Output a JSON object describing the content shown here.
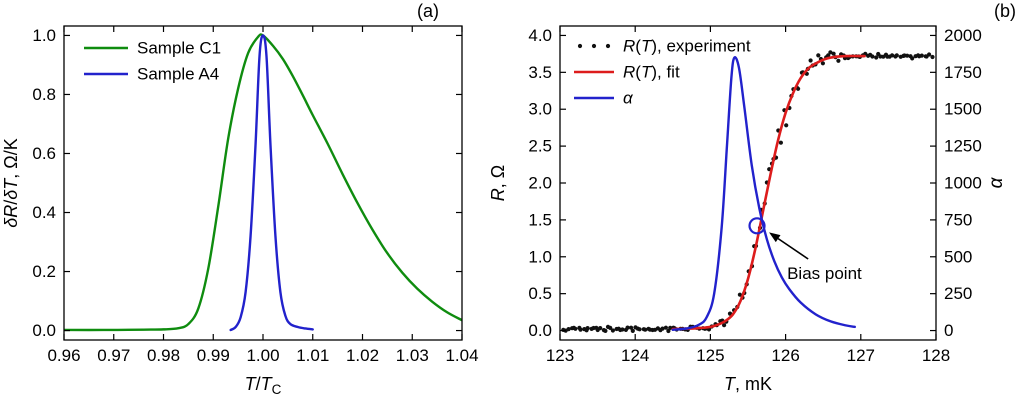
{
  "figure": {
    "background": "#ffffff"
  },
  "chart_data": [
    {
      "id": "a",
      "type": "line",
      "panel_label": "(a)",
      "xlabel_rich": [
        {
          "t": "T",
          "i": true
        },
        {
          "t": "/"
        },
        {
          "t": "T",
          "i": true
        },
        {
          "t": "C",
          "sub": true
        }
      ],
      "ylabel_rich": [
        {
          "t": "δR",
          "i": true
        },
        {
          "t": "/"
        },
        {
          "t": "δT",
          "i": true
        },
        {
          "t": ", Ω/K"
        }
      ],
      "xlim": [
        0.96,
        1.04
      ],
      "ylim": [
        0,
        1
      ],
      "xticks": {
        "v": [
          0.96,
          0.97,
          0.98,
          0.99,
          1.0,
          1.01,
          1.02,
          1.03,
          1.04
        ],
        "l": [
          "0.96",
          "0.97",
          "0.98",
          "0.99",
          "1.00",
          "1.01",
          "1.02",
          "1.03",
          "1.04"
        ]
      },
      "yticks": {
        "v": [
          0,
          0.2,
          0.4,
          0.6,
          0.8,
          1.0
        ],
        "l": [
          "0.0",
          "0.2",
          "0.4",
          "0.6",
          "0.8",
          "1.0"
        ]
      },
      "legend": [
        {
          "marker": "line",
          "color": "#0f8c0f",
          "label": [
            {
              "t": "Sample C1"
            }
          ]
        },
        {
          "marker": "line",
          "color": "#2222cc",
          "label": [
            {
              "t": "Sample A4"
            }
          ]
        }
      ],
      "series": [
        {
          "name": "sample-c1",
          "type": "line",
          "color": "#0f8c0f",
          "width": 2.4,
          "points": [
            [
              0.96,
              0.002
            ],
            [
              0.968,
              0.002
            ],
            [
              0.976,
              0.003
            ],
            [
              0.98,
              0.004
            ],
            [
              0.983,
              0.008
            ],
            [
              0.985,
              0.022
            ],
            [
              0.987,
              0.075
            ],
            [
              0.989,
              0.21
            ],
            [
              0.991,
              0.42
            ],
            [
              0.993,
              0.65
            ],
            [
              0.995,
              0.82
            ],
            [
              0.997,
              0.94
            ],
            [
              0.999,
              0.995
            ],
            [
              1.0,
              1.0
            ],
            [
              1.002,
              0.965
            ],
            [
              1.004,
              0.92
            ],
            [
              1.006,
              0.862
            ],
            [
              1.008,
              0.797
            ],
            [
              1.01,
              0.73
            ],
            [
              1.013,
              0.633
            ],
            [
              1.016,
              0.53
            ],
            [
              1.019,
              0.432
            ],
            [
              1.022,
              0.342
            ],
            [
              1.025,
              0.262
            ],
            [
              1.028,
              0.196
            ],
            [
              1.031,
              0.142
            ],
            [
              1.034,
              0.098
            ],
            [
              1.037,
              0.062
            ],
            [
              1.04,
              0.035
            ]
          ]
        },
        {
          "name": "sample-a4",
          "type": "line",
          "color": "#2222cc",
          "width": 2.4,
          "points": [
            [
              0.9935,
              0.002
            ],
            [
              0.9945,
              0.012
            ],
            [
              0.9955,
              0.045
            ],
            [
              0.9965,
              0.13
            ],
            [
              0.9975,
              0.32
            ],
            [
              0.9985,
              0.63
            ],
            [
              0.9993,
              0.93
            ],
            [
              1.0,
              1.0
            ],
            [
              1.0007,
              0.93
            ],
            [
              1.0015,
              0.63
            ],
            [
              1.0025,
              0.32
            ],
            [
              1.0035,
              0.13
            ],
            [
              1.0045,
              0.05
            ],
            [
              1.0055,
              0.022
            ],
            [
              1.007,
              0.012
            ],
            [
              1.0085,
              0.007
            ],
            [
              1.01,
              0.004
            ]
          ]
        }
      ]
    },
    {
      "id": "b",
      "type": "line+scatter",
      "panel_label": "(b)",
      "xlabel_rich": [
        {
          "t": "T",
          "i": true
        },
        {
          "t": ", mK"
        }
      ],
      "ylabel_rich": [
        {
          "t": "R",
          "i": true
        },
        {
          "t": ", Ω"
        }
      ],
      "right_label_rich": [
        {
          "t": "α",
          "i": true
        }
      ],
      "xlim": [
        123,
        128
      ],
      "ylim": [
        0,
        4
      ],
      "right_lim": [
        0,
        2000
      ],
      "xticks": {
        "v": [
          123,
          124,
          125,
          126,
          127,
          128
        ],
        "l": [
          "123",
          "124",
          "125",
          "126",
          "127",
          "128"
        ]
      },
      "yticks": {
        "v": [
          0,
          0.5,
          1,
          1.5,
          2,
          2.5,
          3,
          3.5,
          4
        ],
        "l": [
          "0.0",
          "0.5",
          "1.0",
          "1.5",
          "2.0",
          "2.5",
          "3.0",
          "3.5",
          "4.0"
        ]
      },
      "right_ticks": {
        "v": [
          0,
          250,
          500,
          750,
          1000,
          1250,
          1500,
          1750,
          2000
        ],
        "l": [
          "0",
          "250",
          "500",
          "750",
          "1000",
          "1250",
          "1500",
          "1750",
          "2000"
        ]
      },
      "legend": [
        {
          "marker": "dots",
          "color": "#111111",
          "label": [
            {
              "t": "R",
              "i": true
            },
            {
              "t": "("
            },
            {
              "t": "T",
              "i": true
            },
            {
              "t": "), experiment"
            }
          ]
        },
        {
          "marker": "line",
          "color": "#dd1c1c",
          "label": [
            {
              "t": "R",
              "i": true
            },
            {
              "t": "("
            },
            {
              "t": "T",
              "i": true
            },
            {
              "t": "), fit"
            }
          ]
        },
        {
          "marker": "line",
          "color": "#2222cc",
          "label": [
            {
              "t": "α",
              "i": true
            }
          ]
        }
      ],
      "series": [
        {
          "name": "experiment",
          "type": "scatter_gen",
          "color": "#111111",
          "dot_r": 2.1,
          "gen": {
            "n": 150,
            "t0": 123.05,
            "t1": 127.95,
            "seed": 42,
            "x_jitter": 0.012,
            "noise_base": 0.035,
            "noise_amp": 0.22,
            "noise_center": 125.9,
            "noise_sigma": 0.4
          },
          "base": "fit"
        },
        {
          "name": "fit",
          "type": "line",
          "color": "#dd1c1c",
          "width": 2.6,
          "points": [
            [
              124.5,
              0.02
            ],
            [
              124.8,
              0.03
            ],
            [
              125.0,
              0.05
            ],
            [
              125.1,
              0.08
            ],
            [
              125.2,
              0.13
            ],
            [
              125.3,
              0.22
            ],
            [
              125.4,
              0.4
            ],
            [
              125.5,
              0.7
            ],
            [
              125.6,
              1.12
            ],
            [
              125.7,
              1.62
            ],
            [
              125.8,
              2.12
            ],
            [
              125.9,
              2.58
            ],
            [
              126.0,
              2.95
            ],
            [
              126.1,
              3.22
            ],
            [
              126.2,
              3.42
            ],
            [
              126.3,
              3.55
            ],
            [
              126.4,
              3.62
            ],
            [
              126.5,
              3.67
            ],
            [
              126.6,
              3.7
            ],
            [
              126.8,
              3.72
            ],
            [
              127.05,
              3.72
            ]
          ]
        },
        {
          "name": "alpha",
          "type": "line",
          "axis": "right",
          "color": "#2222cc",
          "width": 2.4,
          "points": [
            [
              124.5,
              5
            ],
            [
              124.7,
              15
            ],
            [
              124.85,
              40
            ],
            [
              124.95,
              90
            ],
            [
              125.05,
              250
            ],
            [
              125.15,
              700
            ],
            [
              125.22,
              1250
            ],
            [
              125.28,
              1720
            ],
            [
              125.32,
              1850
            ],
            [
              125.38,
              1780
            ],
            [
              125.45,
              1520
            ],
            [
              125.55,
              1120
            ],
            [
              125.65,
              830
            ],
            [
              125.75,
              620
            ],
            [
              125.85,
              470
            ],
            [
              125.95,
              360
            ],
            [
              126.05,
              280
            ],
            [
              126.2,
              190
            ],
            [
              126.4,
              110
            ],
            [
              126.6,
              62
            ],
            [
              126.8,
              35
            ],
            [
              126.92,
              25
            ]
          ]
        }
      ],
      "bias_point": {
        "x": 125.62,
        "y": 1.42,
        "r": 7.5,
        "color": "#2222cc"
      },
      "annotation": {
        "text": "Bias point",
        "text_x": 126.02,
        "text_y": 0.7,
        "arrow_from": [
          126.3,
          0.97
        ],
        "arrow_to": [
          125.78,
          1.33
        ]
      }
    }
  ]
}
